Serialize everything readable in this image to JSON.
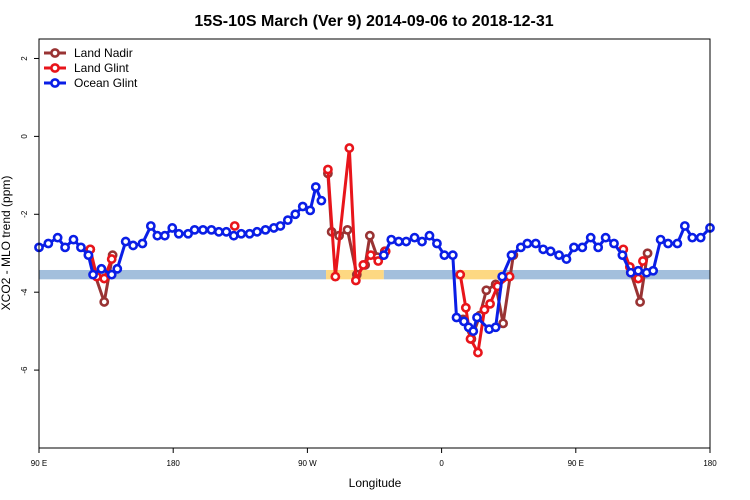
{
  "chart_data": {
    "type": "line",
    "title": "15S-10S March (Ver 9)   2014-09-06 to 2018-12-31",
    "xlabel": "Longitude",
    "ylabel": "XCO2 - MLO trend (ppm)",
    "xlim": [
      0,
      720
    ],
    "ylim": [
      -8,
      2.5
    ],
    "x_ticks": [
      {
        "value": 0,
        "label": "90 E"
      },
      {
        "value": 144,
        "label": "180"
      },
      {
        "value": 288,
        "label": "90 W"
      },
      {
        "value": 432,
        "label": "0"
      },
      {
        "value": 576,
        "label": "90 E"
      },
      {
        "value": 720,
        "label": "180"
      }
    ],
    "y_ticks": [
      {
        "value": 2,
        "label": "2"
      },
      {
        "value": 0,
        "label": "0"
      },
      {
        "value": -2,
        "label": "-2"
      },
      {
        "value": -4,
        "label": "-4"
      },
      {
        "value": -6,
        "label": "-6"
      }
    ],
    "legend_position": "top-left",
    "band": {
      "y": -3.55,
      "half_height": 0.12,
      "segments": [
        {
          "x0": 0,
          "x1": 308,
          "color": "#a3bfdc"
        },
        {
          "x0": 308,
          "x1": 370,
          "color": "#fdd882"
        },
        {
          "x0": 370,
          "x1": 450,
          "color": "#a3bfdc"
        },
        {
          "x0": 450,
          "x1": 500,
          "color": "#fdd882"
        },
        {
          "x0": 500,
          "x1": 720,
          "color": "#a3bfdc"
        }
      ]
    },
    "series": [
      {
        "name": "Land Nadir",
        "color": "#993333",
        "segments": [
          [
            [
              55,
              -2.9
            ],
            [
              60,
              -3.55
            ],
            [
              70,
              -4.25
            ],
            [
              79,
              -3.05
            ]
          ],
          [
            [
              310,
              -0.95
            ],
            [
              314,
              -2.45
            ],
            [
              322,
              -2.55
            ],
            [
              331,
              -2.4
            ],
            [
              341,
              -3.55
            ],
            [
              350,
              -3.3
            ],
            [
              355,
              -2.55
            ],
            [
              363,
              -3.1
            ],
            [
              371,
              -2.95
            ]
          ],
          [
            [
              455,
              -4.7
            ],
            [
              464,
              -5.2
            ],
            [
              473,
              -4.6
            ],
            [
              480,
              -3.95
            ],
            [
              490,
              -3.8
            ],
            [
              498,
              -4.8
            ],
            [
              509,
              -3.05
            ]
          ],
          [
            [
              635,
              -3.5
            ],
            [
              645,
              -4.25
            ],
            [
              653,
              -3.0
            ]
          ]
        ]
      },
      {
        "name": "Land Glint",
        "color": "#e8151b",
        "segments": [
          [
            [
              55,
              -2.9
            ],
            [
              62,
              -3.6
            ],
            [
              70,
              -3.65
            ],
            [
              78,
              -3.15
            ]
          ],
          [
            [
              210,
              -2.3
            ]
          ],
          [
            [
              310,
              -0.85
            ],
            [
              318,
              -3.6
            ],
            [
              333,
              -0.3
            ],
            [
              340,
              -3.7
            ],
            [
              348,
              -3.3
            ],
            [
              356,
              -3.05
            ],
            [
              364,
              -3.2
            ],
            [
              372,
              -2.95
            ]
          ],
          [
            [
              452,
              -3.55
            ],
            [
              458,
              -4.4
            ],
            [
              463,
              -5.2
            ],
            [
              471,
              -5.55
            ],
            [
              478,
              -4.45
            ],
            [
              484,
              -4.3
            ],
            [
              492,
              -3.85
            ],
            [
              505,
              -3.6
            ]
          ],
          [
            [
              627,
              -2.9
            ],
            [
              634,
              -3.35
            ],
            [
              643,
              -3.65
            ],
            [
              648,
              -3.2
            ]
          ]
        ]
      },
      {
        "name": "Ocean Glint",
        "color": "#0a1ee6",
        "segments": [
          [
            [
              0,
              -2.85
            ],
            [
              10,
              -2.75
            ],
            [
              20,
              -2.6
            ],
            [
              28,
              -2.85
            ],
            [
              37,
              -2.65
            ],
            [
              45,
              -2.85
            ],
            [
              53,
              -3.05
            ],
            [
              58,
              -3.55
            ],
            [
              67,
              -3.4
            ],
            [
              78,
              -3.55
            ],
            [
              84,
              -3.4
            ],
            [
              93,
              -2.7
            ],
            [
              101,
              -2.8
            ],
            [
              111,
              -2.75
            ],
            [
              120,
              -2.3
            ],
            [
              127,
              -2.55
            ],
            [
              135,
              -2.55
            ],
            [
              143,
              -2.35
            ],
            [
              150,
              -2.5
            ],
            [
              160,
              -2.5
            ],
            [
              167,
              -2.4
            ],
            [
              176,
              -2.4
            ],
            [
              185,
              -2.4
            ],
            [
              193,
              -2.45
            ],
            [
              201,
              -2.45
            ],
            [
              209,
              -2.55
            ],
            [
              217,
              -2.5
            ],
            [
              226,
              -2.5
            ],
            [
              234,
              -2.45
            ],
            [
              243,
              -2.4
            ],
            [
              252,
              -2.35
            ],
            [
              259,
              -2.3
            ],
            [
              267,
              -2.15
            ],
            [
              275,
              -2.0
            ],
            [
              283,
              -1.8
            ],
            [
              291,
              -1.9
            ],
            [
              297,
              -1.3
            ],
            [
              303,
              -1.65
            ]
          ],
          [
            [
              370,
              -3.05
            ],
            [
              378,
              -2.65
            ],
            [
              386,
              -2.7
            ],
            [
              394,
              -2.7
            ],
            [
              403,
              -2.6
            ],
            [
              411,
              -2.7
            ],
            [
              419,
              -2.55
            ],
            [
              427,
              -2.75
            ],
            [
              435,
              -3.05
            ],
            [
              444,
              -3.05
            ],
            [
              448,
              -4.65
            ],
            [
              456,
              -4.75
            ],
            [
              461,
              -4.9
            ],
            [
              466,
              -5.0
            ],
            [
              470,
              -4.65
            ],
            [
              483,
              -4.95
            ],
            [
              490,
              -4.9
            ],
            [
              497,
              -3.6
            ],
            [
              507,
              -3.05
            ],
            [
              517,
              -2.85
            ],
            [
              524,
              -2.75
            ],
            [
              533,
              -2.75
            ],
            [
              541,
              -2.9
            ],
            [
              549,
              -2.95
            ],
            [
              558,
              -3.05
            ],
            [
              566,
              -3.15
            ],
            [
              574,
              -2.85
            ],
            [
              583,
              -2.85
            ],
            [
              592,
              -2.6
            ],
            [
              600,
              -2.85
            ],
            [
              608,
              -2.6
            ],
            [
              617,
              -2.75
            ],
            [
              626,
              -3.05
            ],
            [
              635,
              -3.5
            ],
            [
              643,
              -3.45
            ],
            [
              652,
              -3.5
            ],
            [
              659,
              -3.45
            ],
            [
              667,
              -2.65
            ],
            [
              675,
              -2.75
            ],
            [
              685,
              -2.75
            ],
            [
              693,
              -2.3
            ],
            [
              701,
              -2.6
            ],
            [
              710,
              -2.6
            ],
            [
              720,
              -2.35
            ]
          ]
        ]
      }
    ]
  }
}
